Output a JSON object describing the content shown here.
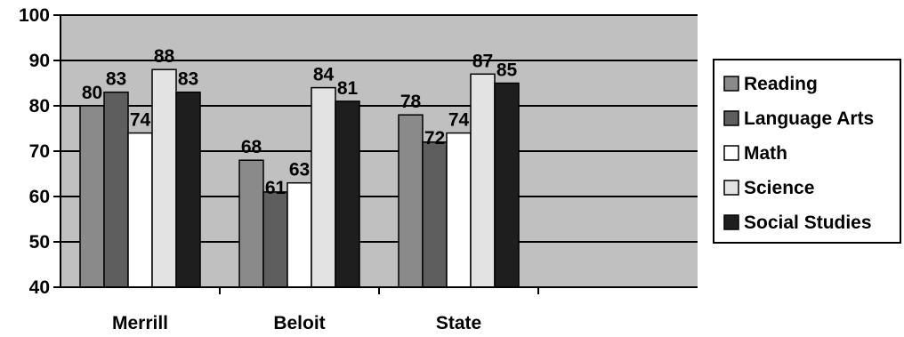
{
  "chart_data": {
    "type": "bar",
    "title": "",
    "xlabel": "",
    "ylabel": "",
    "categories": [
      "Merrill",
      "Beloit",
      "State"
    ],
    "ylim": [
      40,
      100
    ],
    "yticks": [
      40,
      50,
      60,
      70,
      80,
      90,
      100
    ],
    "grid": true,
    "legend_position": "right",
    "background_color": "#c0c0c0",
    "series": [
      {
        "name": "Reading",
        "values": [
          80,
          68,
          78
        ],
        "color": "#8a8a8a"
      },
      {
        "name": "Language Arts",
        "values": [
          83,
          61,
          72
        ],
        "color": "#5e5e5e"
      },
      {
        "name": "Math",
        "values": [
          74,
          63,
          74
        ],
        "color": "#ffffff"
      },
      {
        "name": "Science",
        "values": [
          88,
          84,
          87
        ],
        "color": "#e3e3e3"
      },
      {
        "name": "Social Studies",
        "values": [
          83,
          81,
          85
        ],
        "color": "#1e1e1e"
      }
    ]
  }
}
